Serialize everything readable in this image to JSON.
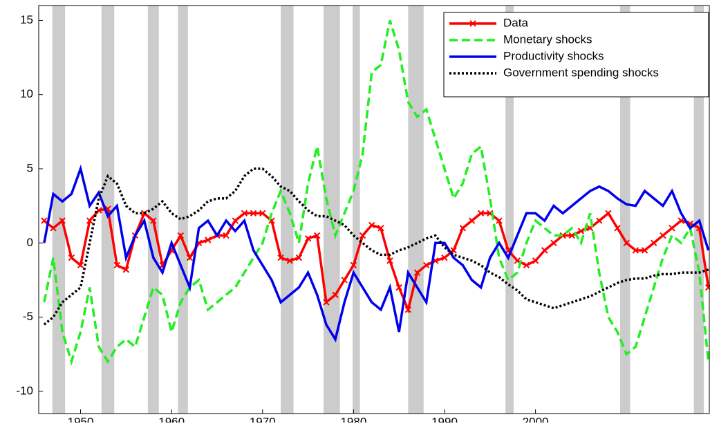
{
  "chart_data": {
    "type": "line",
    "x": [
      1946,
      1947,
      1948,
      1949,
      1950,
      1951,
      1952,
      1953,
      1954,
      1955,
      1956,
      1957,
      1958,
      1959,
      1960,
      1961,
      1962,
      1963,
      1964,
      1965,
      1966,
      1967,
      1968,
      1969,
      1970,
      1971,
      1972,
      1973,
      1974,
      1975,
      1976,
      1977,
      1978,
      1979,
      1980,
      1981,
      1982,
      1983,
      1984,
      1985,
      1986,
      1987,
      1988,
      1989,
      1990,
      1991,
      1992,
      1993,
      1994,
      1995,
      1996,
      1997,
      1998,
      1999,
      2000,
      2001,
      2002,
      2003,
      2004,
      2005,
      2006,
      2007,
      2008,
      2009,
      2010,
      2011,
      2012,
      2013,
      2014,
      2015,
      2016,
      2017,
      2018,
      2019
    ],
    "series": [
      {
        "name": "Data",
        "color": "#ff0000",
        "marker": "x",
        "dash": "solid",
        "values": [
          1.5,
          1.0,
          1.5,
          -1,
          -1.5,
          1.5,
          2.2,
          2.3,
          -1.5,
          -1.8,
          0.5,
          2,
          1.5,
          -1.5,
          -0.5,
          0.5,
          -1.0,
          0,
          0.2,
          0.5,
          0.5,
          1.5,
          2,
          2,
          2,
          1.5,
          -1,
          -1.2,
          -1,
          0.3,
          0.5,
          -4,
          -3.5,
          -2.5,
          -1.5,
          0.5,
          1.2,
          1,
          -1.2,
          -3,
          -4.5,
          -2,
          -1.5,
          -1.2,
          -1,
          -0.5,
          1,
          1.5,
          2,
          2,
          1.5,
          -0.5,
          -1.2,
          -1.5,
          -1.2,
          -0.5,
          0,
          0.5,
          0.5,
          0.8,
          1,
          1.5,
          2,
          1,
          0,
          -0.5,
          -0.5,
          0,
          0.5,
          1,
          1.5,
          1.3,
          1.0,
          -3
        ]
      },
      {
        "name": "Monetary shocks",
        "color": "#22ee22",
        "dash": "dashed",
        "values": [
          -4,
          -1,
          -6,
          -8,
          -6,
          -3,
          -7,
          -8,
          -7,
          -6.5,
          -7,
          -5,
          -3,
          -3.5,
          -6,
          -4,
          -3,
          -2.5,
          -4.5,
          -4,
          -3.5,
          -3,
          -2,
          -1,
          0,
          2,
          3.5,
          2,
          0,
          4,
          6.5,
          3,
          0.5,
          2,
          3.5,
          6,
          11.5,
          12,
          15,
          13,
          9.5,
          8.5,
          9,
          7,
          5,
          3,
          4,
          6,
          6.5,
          3,
          -1,
          -2.5,
          -2,
          0,
          1.5,
          1,
          0.5,
          0.5,
          1,
          0,
          2,
          -2,
          -5,
          -6,
          -7.5,
          -7,
          -5,
          -3,
          -1,
          0.5,
          0,
          1,
          -2,
          -8
        ]
      },
      {
        "name": "Productivity shocks",
        "color": "#0000ee",
        "dash": "solid",
        "values": [
          0,
          3.3,
          2.8,
          3.3,
          5,
          2.5,
          3.4,
          1.8,
          2.5,
          -1,
          0.5,
          1.5,
          -1,
          -2,
          0,
          -1.5,
          -3,
          1,
          1.5,
          0.5,
          1.5,
          0.8,
          1.5,
          -0.5,
          -1.5,
          -2.5,
          -4,
          -3.5,
          -3,
          -2,
          -3.5,
          -5.5,
          -6.5,
          -4,
          -2,
          -3,
          -4,
          -4.5,
          -3,
          -6,
          -2,
          -3,
          -4,
          0,
          0,
          -1,
          -1.5,
          -2.5,
          -3,
          -1,
          0,
          -1,
          0.5,
          2,
          2,
          1.5,
          2.5,
          2,
          2.5,
          3,
          3.5,
          3.8,
          3.5,
          3,
          2.6,
          2.5,
          3.5,
          3,
          2.5,
          3.5,
          2,
          1,
          1.5,
          -0.5
        ]
      },
      {
        "name": "Government spending shocks",
        "color": "#000000",
        "dash": "dotted",
        "values": [
          -5.5,
          -5,
          -4,
          -3.5,
          -3,
          0,
          3,
          4.5,
          4,
          2.5,
          2,
          2,
          2.3,
          2.8,
          2,
          1.6,
          1.8,
          2.2,
          2.8,
          3,
          3,
          3.5,
          4.5,
          5,
          5,
          4.5,
          3.8,
          3.5,
          2.8,
          2.2,
          1.8,
          1.8,
          1.5,
          1.2,
          0.5,
          0,
          -0.5,
          -0.8,
          -0.8,
          -0.5,
          -0.3,
          0,
          0.3,
          0.5,
          -0.3,
          -0.8,
          -1,
          -1.2,
          -1.5,
          -2,
          -2.3,
          -2.8,
          -3.2,
          -3.8,
          -4,
          -4.2,
          -4.4,
          -4.2,
          -4,
          -3.8,
          -3.6,
          -3.3,
          -3,
          -2.7,
          -2.5,
          -2.4,
          -2.4,
          -2.2,
          -2.1,
          -2.1,
          -2,
          -2,
          -2,
          -1.8
        ]
      }
    ],
    "shaded_periods": [
      [
        1946.9,
        1948.3
      ],
      [
        1952.3,
        1953.7
      ],
      [
        1957.4,
        1958.6
      ],
      [
        1960.7,
        1961.8
      ],
      [
        1972.0,
        1973.4
      ],
      [
        1976.7,
        1978.5
      ],
      [
        1979.9,
        1980.7
      ],
      [
        1986.0,
        1987.7
      ],
      [
        1996.7,
        1997.6
      ],
      [
        2009.3,
        2010.4
      ],
      [
        2017.4,
        2018.5
      ]
    ],
    "shade_color": "#cccccc",
    "xlim": [
      1945.4,
      2019.1
    ],
    "xticks": [
      1950,
      1960,
      1970,
      1980,
      1990,
      2000
    ],
    "ylim": [
      -11.5,
      16
    ],
    "yticks": [
      -10,
      -5,
      0,
      5,
      10,
      15
    ],
    "legend": "top-right"
  }
}
